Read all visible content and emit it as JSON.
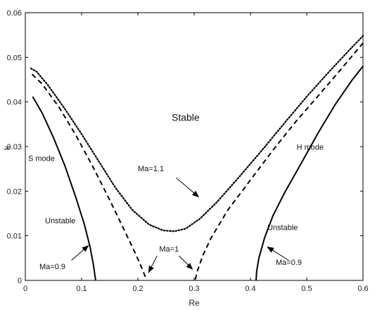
{
  "chart_data": {
    "type": "line",
    "title": "",
    "xlabel": "Re",
    "ylabel": "k",
    "xlim": [
      0,
      0.6
    ],
    "ylim": [
      0,
      0.06
    ],
    "xticks": [
      0,
      0.1,
      0.2,
      0.3,
      0.4,
      0.5,
      0.6
    ],
    "xtick_labels": [
      "0",
      "0.1",
      "0.2",
      "0.3",
      "0.4",
      "0.5",
      "0.6"
    ],
    "yticks": [
      0,
      0.01,
      0.02,
      0.03,
      0.04,
      0.05,
      0.06
    ],
    "ytick_labels": [
      "0",
      "0.01",
      "0.02",
      "0.03",
      "0.04",
      "0.05",
      "0.06"
    ],
    "grid": false,
    "series": [
      {
        "label": "Ma=0.9 (S mode)",
        "style": "solid",
        "color": "#000000",
        "points": [
          [
            0.013,
            0.0412
          ],
          [
            0.03,
            0.0375
          ],
          [
            0.05,
            0.032
          ],
          [
            0.07,
            0.0258
          ],
          [
            0.09,
            0.0185
          ],
          [
            0.105,
            0.0125
          ],
          [
            0.115,
            0.0075
          ],
          [
            0.121,
            0.0035
          ],
          [
            0.124,
            0.0008
          ],
          [
            0.125,
            0.0
          ]
        ]
      },
      {
        "label": "Ma=0.9 (H mode)",
        "style": "solid",
        "color": "#000000",
        "points": [
          [
            0.41,
            0.0
          ],
          [
            0.411,
            0.002
          ],
          [
            0.415,
            0.005
          ],
          [
            0.425,
            0.0095
          ],
          [
            0.44,
            0.0145
          ],
          [
            0.46,
            0.0195
          ],
          [
            0.49,
            0.0262
          ],
          [
            0.52,
            0.033
          ],
          [
            0.55,
            0.0393
          ],
          [
            0.58,
            0.0448
          ],
          [
            0.6,
            0.048
          ]
        ]
      },
      {
        "label": "Ma=1",
        "style": "dashed",
        "color": "#000000",
        "points": [
          [
            0.012,
            0.0462
          ],
          [
            0.03,
            0.044
          ],
          [
            0.06,
            0.0388
          ],
          [
            0.09,
            0.0325
          ],
          [
            0.12,
            0.0255
          ],
          [
            0.15,
            0.018
          ],
          [
            0.175,
            0.0115
          ],
          [
            0.195,
            0.0062
          ],
          [
            0.208,
            0.0025
          ],
          [
            0.215,
            0.0002
          ],
          [
            null,
            null
          ],
          [
            0.302,
            0.0002
          ],
          [
            0.306,
            0.0022
          ],
          [
            0.315,
            0.0055
          ],
          [
            0.33,
            0.0095
          ],
          [
            0.36,
            0.0158
          ],
          [
            0.4,
            0.0225
          ],
          [
            0.44,
            0.0292
          ],
          [
            0.48,
            0.0355
          ],
          [
            0.52,
            0.0413
          ],
          [
            0.56,
            0.0472
          ],
          [
            0.6,
            0.0532
          ]
        ]
      },
      {
        "label": "Ma=1.1",
        "style": "dotted",
        "color": "#000000",
        "points": [
          [
            0.01,
            0.0475
          ],
          [
            0.02,
            0.0468
          ],
          [
            0.04,
            0.0438
          ],
          [
            0.07,
            0.0385
          ],
          [
            0.1,
            0.0328
          ],
          [
            0.13,
            0.0268
          ],
          [
            0.16,
            0.0208
          ],
          [
            0.19,
            0.0158
          ],
          [
            0.22,
            0.0125
          ],
          [
            0.245,
            0.0112
          ],
          [
            0.265,
            0.011
          ],
          [
            0.285,
            0.0116
          ],
          [
            0.31,
            0.0138
          ],
          [
            0.34,
            0.0175
          ],
          [
            0.38,
            0.0232
          ],
          [
            0.42,
            0.0291
          ],
          [
            0.46,
            0.0352
          ],
          [
            0.5,
            0.0412
          ],
          [
            0.54,
            0.0468
          ],
          [
            0.58,
            0.0522
          ],
          [
            0.6,
            0.0548
          ]
        ]
      }
    ],
    "annotations": [
      {
        "text": "Stable",
        "x": 0.26,
        "y": 0.0358,
        "size": "large"
      },
      {
        "text": "S mode",
        "x": 0.005,
        "y": 0.0268,
        "size": "normal"
      },
      {
        "text": "H mode",
        "x": 0.482,
        "y": 0.0293,
        "size": "normal"
      },
      {
        "text": "Unstable",
        "x": 0.035,
        "y": 0.0128,
        "size": "normal"
      },
      {
        "text": "Unstable",
        "x": 0.43,
        "y": 0.0113,
        "size": "normal"
      },
      {
        "text": "Ma=1.1",
        "x": 0.2,
        "y": 0.0245,
        "size": "normal"
      },
      {
        "text": "Ma=1",
        "x": 0.238,
        "y": 0.0065,
        "size": "normal"
      },
      {
        "text": "Ma=0.9",
        "x": 0.025,
        "y": 0.0025,
        "size": "normal"
      },
      {
        "text": "Ma=0.9",
        "x": 0.445,
        "y": 0.0035,
        "size": "normal"
      }
    ],
    "arrows": [
      {
        "from": [
          0.268,
          0.023
        ],
        "to": [
          0.308,
          0.0187
        ]
      },
      {
        "from": [
          0.234,
          0.0055
        ],
        "to": [
          0.219,
          0.0018
        ]
      },
      {
        "from": [
          0.273,
          0.0055
        ],
        "to": [
          0.297,
          0.0025
        ]
      },
      {
        "from": [
          0.082,
          0.0045
        ],
        "to": [
          0.112,
          0.0078
        ]
      },
      {
        "from": [
          0.468,
          0.0045
        ],
        "to": [
          0.43,
          0.0075
        ]
      }
    ]
  }
}
